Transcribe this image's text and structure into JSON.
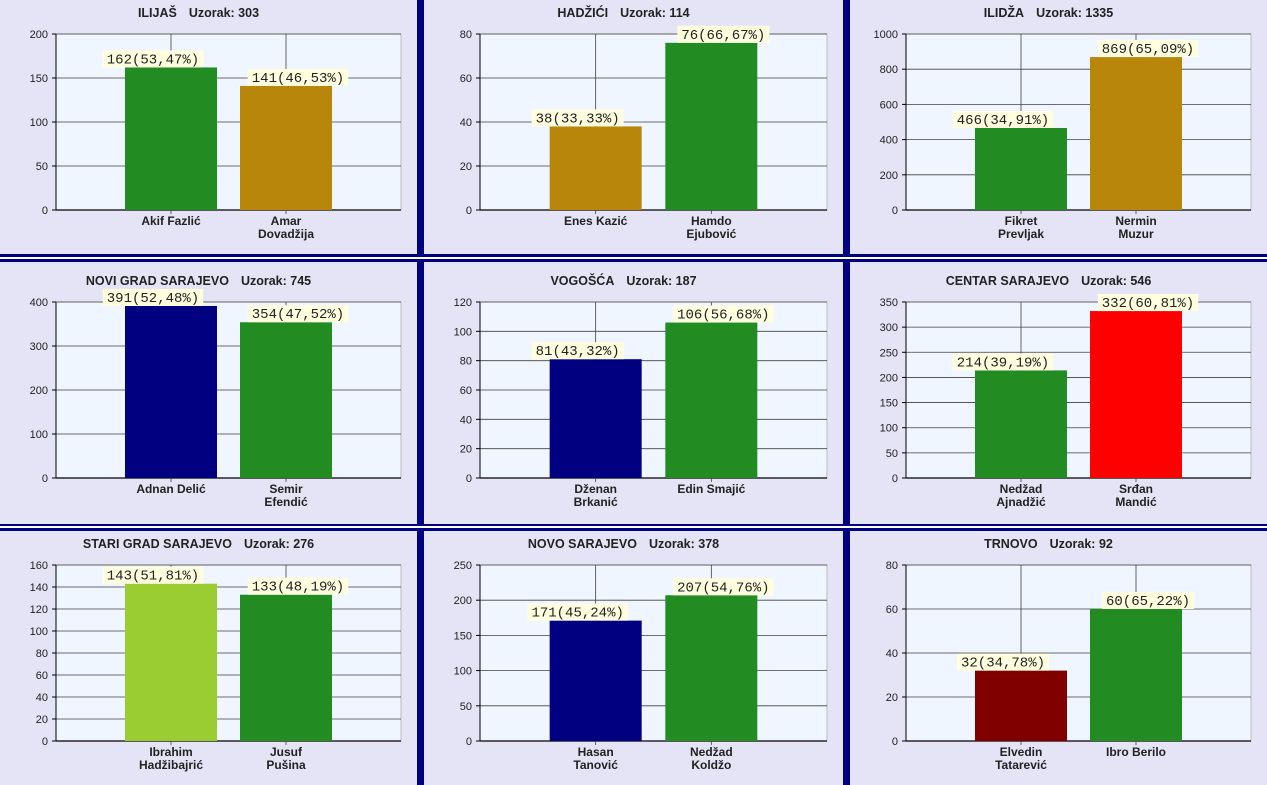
{
  "sample_label": "Uzorak:",
  "colors": {
    "plot_bg": "#f0f6ff",
    "panel_bg": "#e4e4f6",
    "label_bg": "#ffffe0",
    "grid": "#404040",
    "separator": "#000080"
  },
  "chart_data": [
    {
      "type": "bar",
      "title": "ILIJAŠ",
      "sample": "303",
      "ylim": [
        0,
        200
      ],
      "step": 50,
      "bars": [
        {
          "name": [
            "Akif Fazlić"
          ],
          "value": 162,
          "label": "162(53,47%)",
          "color": "#228B22"
        },
        {
          "name": [
            "Amar",
            "Dovadžija"
          ],
          "value": 141,
          "label": "141(46,53%)",
          "color": "#B8860B"
        }
      ]
    },
    {
      "type": "bar",
      "title": "HADŽIĆI",
      "sample": "114",
      "ylim": [
        0,
        80
      ],
      "step": 20,
      "bars": [
        {
          "name": [
            "Enes Kazić"
          ],
          "value": 38,
          "label": "38(33,33%)",
          "color": "#B8860B"
        },
        {
          "name": [
            "Hamdo",
            "Ejubović"
          ],
          "value": 76,
          "label": "76(66,67%)",
          "color": "#228B22"
        }
      ]
    },
    {
      "type": "bar",
      "title": "ILIDŽA",
      "sample": "1335",
      "ylim": [
        0,
        1000
      ],
      "step": 200,
      "bars": [
        {
          "name": [
            "Fikret",
            "Prevljak"
          ],
          "value": 466,
          "label": "466(34,91%)",
          "color": "#228B22"
        },
        {
          "name": [
            "Nermin",
            "Muzur"
          ],
          "value": 869,
          "label": "869(65,09%)",
          "color": "#B8860B"
        }
      ]
    },
    {
      "type": "bar",
      "title": "NOVI GRAD SARAJEVO",
      "sample": "745",
      "ylim": [
        0,
        400
      ],
      "step": 100,
      "bars": [
        {
          "name": [
            "Adnan Delić"
          ],
          "value": 391,
          "label": "391(52,48%)",
          "color": "#000080"
        },
        {
          "name": [
            "Semir",
            "Efendić"
          ],
          "value": 354,
          "label": "354(47,52%)",
          "color": "#228B22"
        }
      ]
    },
    {
      "type": "bar",
      "title": "VOGOŠĆA",
      "sample": "187",
      "ylim": [
        0,
        120
      ],
      "step": 20,
      "bars": [
        {
          "name": [
            "Dženan",
            "Brkanić"
          ],
          "value": 81,
          "label": "81(43,32%)",
          "color": "#000080"
        },
        {
          "name": [
            "Edin Smajić"
          ],
          "value": 106,
          "label": "106(56,68%)",
          "color": "#228B22"
        }
      ]
    },
    {
      "type": "bar",
      "title": "CENTAR SARAJEVO",
      "sample": "546",
      "ylim": [
        0,
        350
      ],
      "step": 50,
      "bars": [
        {
          "name": [
            "Nedžad",
            "Ajnadžić"
          ],
          "value": 214,
          "label": "214(39,19%)",
          "color": "#228B22"
        },
        {
          "name": [
            "Srđan",
            "Mandić"
          ],
          "value": 332,
          "label": "332(60,81%)",
          "color": "#FF0000"
        }
      ]
    },
    {
      "type": "bar",
      "title": "STARI GRAD SARAJEVO",
      "sample": "276",
      "ylim": [
        0,
        160
      ],
      "step": 20,
      "bars": [
        {
          "name": [
            "Ibrahim",
            "Hadžibajrić"
          ],
          "value": 143,
          "label": "143(51,81%)",
          "color": "#9ACD32"
        },
        {
          "name": [
            "Jusuf",
            "Pušina"
          ],
          "value": 133,
          "label": "133(48,19%)",
          "color": "#228B22"
        }
      ]
    },
    {
      "type": "bar",
      "title": "NOVO SARAJEVO",
      "sample": "378",
      "ylim": [
        0,
        250
      ],
      "step": 50,
      "bars": [
        {
          "name": [
            "Hasan",
            "Tanović"
          ],
          "value": 171,
          "label": "171(45,24%)",
          "color": "#000080"
        },
        {
          "name": [
            "Nedžad",
            "Koldžo"
          ],
          "value": 207,
          "label": "207(54,76%)",
          "color": "#228B22"
        }
      ]
    },
    {
      "type": "bar",
      "title": "TRNOVO",
      "sample": "92",
      "ylim": [
        0,
        80
      ],
      "step": 20,
      "bars": [
        {
          "name": [
            "Elvedin",
            "Tatarević"
          ],
          "value": 32,
          "label": "32(34,78%)",
          "color": "#800000"
        },
        {
          "name": [
            "Ibro Berilo"
          ],
          "value": 60,
          "label": "60(65,22%)",
          "color": "#228B22"
        }
      ]
    }
  ]
}
